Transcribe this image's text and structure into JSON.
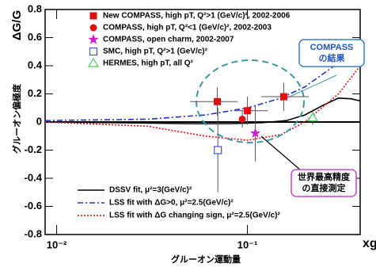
{
  "chart_data": {
    "type": "scatter",
    "y_label": "ΔG/G",
    "y_label_jp": "グルーオン偏極度",
    "x_label": "xg",
    "x_label_jp": "グルーオン運動量",
    "log_x": true,
    "xlim": [
      0.0087,
      0.39
    ],
    "ylim": [
      -0.8,
      0.8
    ],
    "xticks": [
      {
        "value": 0.01,
        "label": "10⁻²"
      },
      {
        "value": 0.1,
        "label": "10⁻¹"
      }
    ],
    "yticks": [
      -0.8,
      -0.6,
      -0.4,
      -0.2,
      0,
      0.2,
      0.4,
      0.6,
      0.8
    ],
    "series": [
      {
        "name": "New COMPASS, high pT, Q²>1 (GeV/c)², 2002-2006",
        "color": "#dd1111",
        "marker": "square",
        "x": [
          0.0695,
          0.1,
          0.155
        ],
        "values": [
          0.145,
          0.08,
          0.18
        ],
        "errors": [
          0.1,
          0.1,
          0.1
        ],
        "x_low": [
          0.05,
          0.085,
          0.118
        ],
        "x_high": [
          0.089,
          0.128,
          0.21
        ]
      },
      {
        "name": "COMPASS, high pT, Q²<1 (GeV/c)², 2002-2003",
        "color": "#dd1111",
        "marker": "circle",
        "x": [
          0.094
        ],
        "values": [
          0.02
        ],
        "errors": [
          0.06
        ]
      },
      {
        "name": "COMPASS, open charm, 2002-2007",
        "color": "#cc22cc",
        "marker": "star",
        "x": [
          0.11
        ],
        "values": [
          -0.08
        ],
        "errors": [
          0.2
        ]
      },
      {
        "name": "SMC, high pT, Q²>1 (GeV/c)²",
        "color": "#4455cc",
        "marker": "open-square",
        "x": [
          0.07
        ],
        "values": [
          -0.2
        ],
        "errors": [
          0.3
        ]
      },
      {
        "name": "HERMES, high pT, all Q²",
        "color": "#44cc55",
        "marker": "open-triangle",
        "x": [
          0.22
        ],
        "values": [
          0.03
        ],
        "errors": [
          0.05
        ]
      }
    ],
    "curves": [
      {
        "name": "DSSV fit, μ²=3(GeV/c)²",
        "color": "#000000",
        "dash": "solid",
        "x": [
          0.0087,
          0.02,
          0.05,
          0.08,
          0.12,
          0.16,
          0.2,
          0.25,
          0.3,
          0.35,
          0.39
        ],
        "values": [
          0.0,
          -0.005,
          -0.012,
          -0.012,
          -0.005,
          0.01,
          0.05,
          0.12,
          0.17,
          0.165,
          0.15
        ]
      },
      {
        "name": "LSS fit with ΔG>0, μ²=2.5(GeV/c)²",
        "color": "#2233cc",
        "dash": "dashdot",
        "x": [
          0.0087,
          0.03,
          0.06,
          0.1,
          0.15,
          0.2,
          0.3,
          0.39
        ],
        "values": [
          0.01,
          0.02,
          0.05,
          0.1,
          0.17,
          0.25,
          0.42,
          0.55
        ]
      },
      {
        "name": "LSS fit with ΔG changing sign, μ²=2.5(GeV/c)²",
        "color": "#dd1111",
        "dash": "dotted",
        "x": [
          0.0087,
          0.03,
          0.06,
          0.1,
          0.15,
          0.2,
          0.3,
          0.39
        ],
        "values": [
          0.0,
          -0.03,
          -0.1,
          -0.13,
          -0.09,
          0.0,
          0.2,
          0.4
        ]
      }
    ],
    "annotations": [
      [
        "COMPASS",
        "の結果"
      ],
      [
        "世界最高精度",
        "の直接測定"
      ]
    ]
  }
}
